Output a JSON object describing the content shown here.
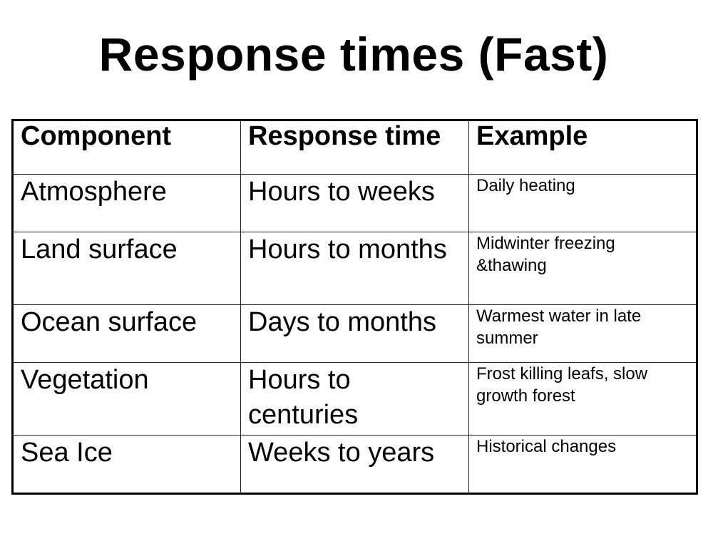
{
  "title": "Response times (Fast)",
  "table": {
    "headers": [
      "Component",
      "Response time",
      "Example"
    ],
    "rows": [
      {
        "component": "Atmosphere",
        "response": "Hours to weeks",
        "example": "Daily heating"
      },
      {
        "component": "Land surface",
        "response": "Hours to months",
        "example": "Midwinter freezing &thawing"
      },
      {
        "component": "Ocean surface",
        "response": "Days to months",
        "example": "Warmest water in late summer"
      },
      {
        "component": "Vegetation",
        "response": "Hours to centuries",
        "example": "Frost killing leafs, slow growth forest"
      },
      {
        "component": "Sea Ice",
        "response": "Weeks to years",
        "example": "Historical changes"
      }
    ]
  }
}
